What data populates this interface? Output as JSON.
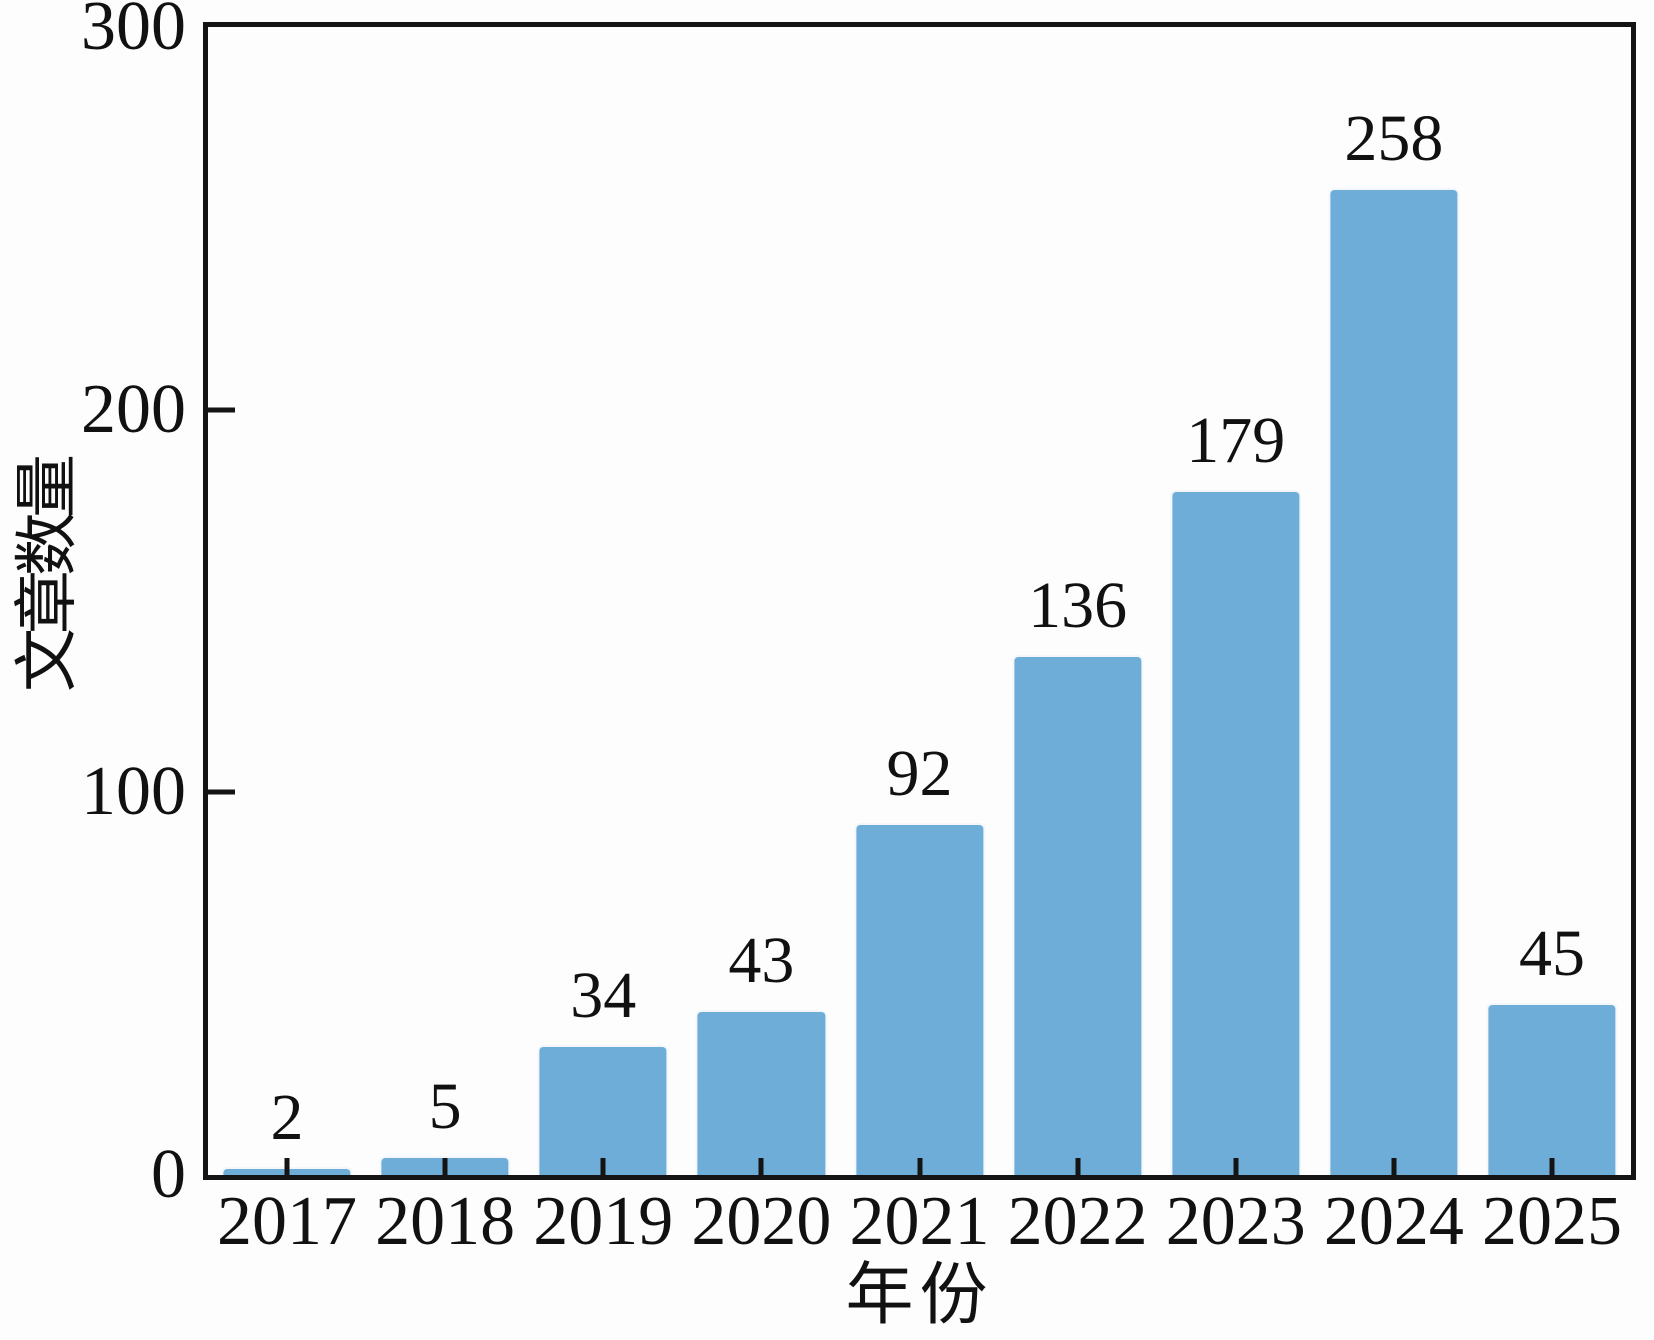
{
  "chart_data": {
    "type": "bar",
    "title": "",
    "categories": [
      "2017",
      "2018",
      "2019",
      "2020",
      "2021",
      "2022",
      "2023",
      "2024",
      "2025"
    ],
    "values": [
      2,
      5,
      34,
      43,
      92,
      136,
      179,
      258,
      45
    ],
    "xlabel": "年份",
    "ylabel": "文章数量",
    "ylim": [
      0,
      300
    ],
    "yticks": [
      0,
      100,
      200,
      300
    ],
    "grid": false,
    "legend": null,
    "bar_width_fraction": 0.83,
    "colors": {
      "bar_fill": "#6fadd9",
      "bar_edge": "#f3f7fb",
      "axis": "#141414",
      "text": "#111111",
      "background": "#fdfdfd"
    }
  }
}
